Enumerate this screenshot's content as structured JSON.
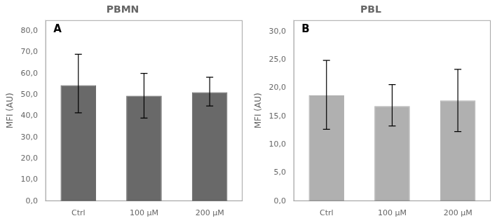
{
  "chart_data": [
    {
      "type": "bar",
      "title": "PBMN",
      "annotation": "A",
      "categories": [
        "Ctrl",
        "100 μM",
        "200 μM"
      ],
      "values": [
        54.5,
        49.5,
        51.2
      ],
      "errors_upper": [
        14.5,
        10.5,
        7.0
      ],
      "errors_lower": [
        13.0,
        10.5,
        6.5
      ],
      "color": "#696969",
      "ylim": [
        0,
        85
      ],
      "yticks": [
        {
          "value": 0,
          "label": "0,0"
        },
        {
          "value": 10,
          "label": "10,0"
        },
        {
          "value": 20,
          "label": "20,0"
        },
        {
          "value": 30,
          "label": "30,0"
        },
        {
          "value": 40,
          "label": "40,0"
        },
        {
          "value": 50,
          "label": "50,0"
        },
        {
          "value": 60,
          "label": "60,0"
        },
        {
          "value": 70,
          "label": "70,0"
        },
        {
          "value": 80,
          "label": "80,0"
        }
      ],
      "ylabel": "MFI (AU)",
      "grid": false
    },
    {
      "type": "bar",
      "title": "PBL",
      "annotation": "B",
      "categories": [
        "Ctrl",
        "100 μM",
        "200 μM"
      ],
      "values": [
        18.7,
        16.8,
        17.8
      ],
      "errors_upper": [
        6.2,
        3.8,
        5.5
      ],
      "errors_lower": [
        6.0,
        3.5,
        5.5
      ],
      "color": "#b0b0b0",
      "ylim": [
        0,
        32
      ],
      "yticks": [
        {
          "value": 0,
          "label": "0,0"
        },
        {
          "value": 5,
          "label": "5,0"
        },
        {
          "value": 10,
          "label": "10,0"
        },
        {
          "value": 15,
          "label": "15,0"
        },
        {
          "value": 20,
          "label": "20,0"
        },
        {
          "value": 25,
          "label": "25,0"
        },
        {
          "value": 30,
          "label": "30,0"
        }
      ],
      "ylabel": "MFI (AU)",
      "grid": false
    }
  ]
}
